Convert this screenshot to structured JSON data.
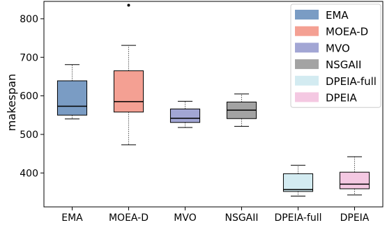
{
  "chart_data": {
    "type": "boxplot",
    "ylabel": "makespan",
    "ylim": [
      312,
      845
    ],
    "yticks": [
      400,
      500,
      600,
      700,
      800
    ],
    "categories": [
      "EMA",
      "MOEA-D",
      "MVO",
      "NSGAII",
      "DPEIA-full",
      "DPEIA"
    ],
    "legend": {
      "position": "top-right",
      "entries": [
        "EMA",
        "MOEA-D",
        "MVO",
        "NSGAII",
        "DPEIA-full",
        "DPEIA"
      ]
    },
    "series": [
      {
        "name": "EMA",
        "color": "#7a9cc4",
        "min": 540,
        "q1": 550,
        "median": 573,
        "q3": 639,
        "max": 681,
        "outliers": []
      },
      {
        "name": "MOEA-D",
        "color": "#f4a093",
        "min": 473,
        "q1": 558,
        "median": 585,
        "q3": 665,
        "max": 731,
        "outliers": [
          835
        ]
      },
      {
        "name": "MVO",
        "color": "#a2a6d4",
        "min": 518,
        "q1": 531,
        "median": 542,
        "q3": 566,
        "max": 586,
        "outliers": []
      },
      {
        "name": "NSGAII",
        "color": "#a3a3a3",
        "min": 521,
        "q1": 541,
        "median": 563,
        "q3": 584,
        "max": 605,
        "outliers": []
      },
      {
        "name": "DPEIA-full",
        "color": "#d3ebf1",
        "min": 340,
        "q1": 352,
        "median": 357,
        "q3": 398,
        "max": 420,
        "outliers": []
      },
      {
        "name": "DPEIA",
        "color": "#f4c8e2",
        "min": 343,
        "q1": 359,
        "median": 371,
        "q3": 402,
        "max": 442,
        "outliers": []
      }
    ]
  }
}
